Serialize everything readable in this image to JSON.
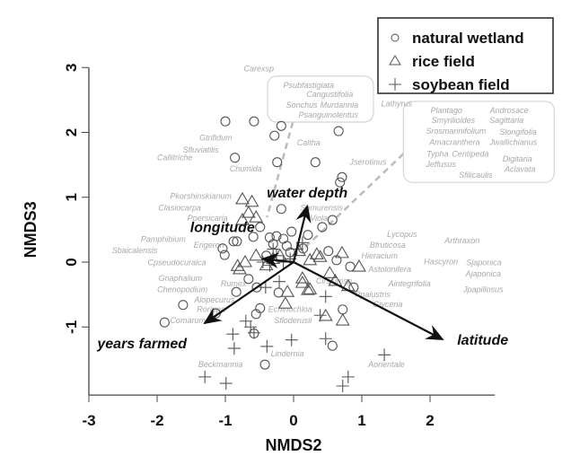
{
  "chart_data": {
    "type": "scatter",
    "xlabel": "NMDS2",
    "ylabel": "NMDS3",
    "xlim": [
      -3,
      2.95
    ],
    "ylim": [
      -2.05,
      3
    ],
    "xticks": [
      "-3",
      "-2",
      "-1",
      "0",
      "1",
      "2"
    ],
    "yticks": [
      "-1",
      "0",
      "1",
      "2",
      "3"
    ],
    "grid": false,
    "legend_placement": "top-right",
    "series": [
      {
        "name": "natural wetland",
        "marker": "circle",
        "points": [
          [
            -1.0,
            2.17
          ],
          [
            -0.58,
            2.17
          ],
          [
            -0.18,
            2.1
          ],
          [
            -0.28,
            1.95
          ],
          [
            0.66,
            2.02
          ],
          [
            -0.86,
            1.61
          ],
          [
            -0.24,
            1.54
          ],
          [
            0.32,
            1.54
          ],
          [
            0.71,
            1.31
          ],
          [
            0.68,
            1.23
          ],
          [
            -0.18,
            0.82
          ],
          [
            0.57,
            0.65
          ],
          [
            0.42,
            0.54
          ],
          [
            -0.49,
            0.54
          ],
          [
            -0.88,
            0.32
          ],
          [
            -0.83,
            0.32
          ],
          [
            -1.04,
            0.21
          ],
          [
            -1.01,
            0.11
          ],
          [
            -0.59,
            0.39
          ],
          [
            -0.03,
            0.47
          ],
          [
            0.14,
            0.21
          ],
          [
            0.21,
            0.42
          ],
          [
            0.51,
            0.17
          ],
          [
            0.63,
            0.03
          ],
          [
            0.83,
            -0.07
          ],
          [
            -0.66,
            -0.26
          ],
          [
            -0.84,
            -0.46
          ],
          [
            -1.62,
            -0.66
          ],
          [
            -1.89,
            -0.93
          ],
          [
            -1.14,
            -0.79
          ],
          [
            -0.55,
            -0.8
          ],
          [
            -0.49,
            -0.71
          ],
          [
            -0.54,
            -0.39
          ],
          [
            -0.22,
            -0.47
          ],
          [
            0.72,
            -0.73
          ],
          [
            0.88,
            -0.39
          ],
          [
            0.57,
            -1.29
          ],
          [
            -0.42,
            -1.58
          ],
          [
            -0.58,
            -1.1
          ],
          [
            -0.35,
            0.38
          ],
          [
            -0.25,
            0.4
          ],
          [
            -0.15,
            0.36
          ],
          [
            -0.3,
            0.28
          ],
          [
            -0.1,
            0.25
          ],
          [
            -0.05,
            0.15
          ],
          [
            -0.4,
            0.1
          ]
        ]
      },
      {
        "name": "rice field",
        "marker": "triangle",
        "points": [
          [
            -0.75,
            0.97
          ],
          [
            -0.61,
            0.93
          ],
          [
            -0.66,
            0.76
          ],
          [
            -0.55,
            0.69
          ],
          [
            -0.75,
            0.65
          ],
          [
            -0.82,
            -0.06
          ],
          [
            -0.71,
            0.0
          ],
          [
            -0.79,
            -0.11
          ],
          [
            0.13,
            -0.25
          ],
          [
            0.24,
            0.03
          ],
          [
            0.21,
            -0.43
          ],
          [
            -0.09,
            -0.46
          ],
          [
            -0.12,
            -0.64
          ],
          [
            0.39,
            0.08
          ],
          [
            0.71,
            0.14
          ],
          [
            0.96,
            -0.07
          ],
          [
            0.53,
            -0.17
          ],
          [
            0.61,
            -0.29
          ],
          [
            0.08,
            0.17
          ],
          [
            0.34,
            0.12
          ],
          [
            0.8,
            -0.37
          ],
          [
            0.24,
            -0.42
          ],
          [
            0.72,
            -0.9
          ],
          [
            0.47,
            -0.83
          ],
          [
            0.13,
            -0.32
          ],
          [
            -0.3,
            0.05
          ],
          [
            -0.2,
            0.1
          ],
          [
            -0.4,
            -0.05
          ],
          [
            -0.55,
            0.1
          ]
        ]
      },
      {
        "name": "soybean field",
        "marker": "cross",
        "points": [
          [
            -0.7,
            -0.91
          ],
          [
            -0.63,
            -1.0
          ],
          [
            -0.89,
            -1.11
          ],
          [
            -0.87,
            -1.33
          ],
          [
            -0.39,
            -1.3
          ],
          [
            -0.03,
            -1.2
          ],
          [
            0.47,
            -1.18
          ],
          [
            0.39,
            -0.82
          ],
          [
            1.33,
            -1.43
          ],
          [
            0.8,
            -1.77
          ],
          [
            0.72,
            -1.91
          ],
          [
            -1.3,
            -1.77
          ],
          [
            -0.99,
            -1.87
          ],
          [
            -0.58,
            -1.09
          ],
          [
            0.47,
            -0.53
          ],
          [
            -0.41,
            -0.39
          ],
          [
            -0.21,
            -0.3
          ],
          [
            0.13,
            0.3
          ],
          [
            -0.25,
            0.1
          ],
          [
            -0.15,
            0.0
          ],
          [
            -0.35,
            -0.05
          ],
          [
            -0.05,
            0.05
          ],
          [
            -0.3,
            0.2
          ],
          [
            0.05,
            0.2
          ],
          [
            -0.45,
            0.0
          ]
        ]
      }
    ],
    "env_vectors": [
      {
        "label": "water depth",
        "tip": [
          0.2,
          0.86
        ]
      },
      {
        "label": "longitude",
        "tip": [
          -0.45,
          0.05
        ]
      },
      {
        "label": "years farmed",
        "tip": [
          -1.3,
          -0.94
        ]
      },
      {
        "label": "latitude",
        "tip": [
          2.18,
          -1.19
        ]
      }
    ],
    "species_labels": [
      {
        "t": "Carexsp",
        "x": -0.51,
        "y": 2.98
      },
      {
        "t": "Lathyrus",
        "x": 1.51,
        "y": 2.44
      },
      {
        "t": "Gtrifidum",
        "x": -1.14,
        "y": 1.92
      },
      {
        "t": "Sfluviatilis",
        "x": -1.36,
        "y": 1.73
      },
      {
        "t": "Callitriche",
        "x": -1.74,
        "y": 1.61
      },
      {
        "t": "Chumida",
        "x": -0.7,
        "y": 1.44
      },
      {
        "t": "Caltha",
        "x": 0.22,
        "y": 1.84
      },
      {
        "t": "Jserotinus",
        "x": 1.09,
        "y": 1.54
      },
      {
        "t": "Pkorshinskianum",
        "x": -1.36,
        "y": 1.02
      },
      {
        "t": "Clasiocarpa",
        "x": -1.67,
        "y": 0.84
      },
      {
        "t": "Ppersicaria",
        "x": -1.26,
        "y": 0.68
      },
      {
        "t": "Samurensis",
        "x": 0.41,
        "y": 0.84
      },
      {
        "t": "Viola",
        "x": 0.37,
        "y": 0.68
      },
      {
        "t": "Pamphibium",
        "x": -1.91,
        "y": 0.35
      },
      {
        "t": "Erigeron",
        "x": -1.24,
        "y": 0.26
      },
      {
        "t": "Sbaicalensis",
        "x": -2.33,
        "y": 0.18
      },
      {
        "t": "Cpseudocuraica",
        "x": -1.71,
        "y": -0.01
      },
      {
        "t": "Gnaphalium",
        "x": -1.66,
        "y": -0.25
      },
      {
        "t": "Chenopodium",
        "x": -1.63,
        "y": -0.42
      },
      {
        "t": "Rumex",
        "x": -0.88,
        "y": -0.33
      },
      {
        "t": "Alopecurus",
        "x": -1.16,
        "y": -0.58
      },
      {
        "t": "Rorippa",
        "x": -1.21,
        "y": -0.73
      },
      {
        "t": "Comarum",
        "x": -1.55,
        "y": -0.9
      },
      {
        "t": "Echinochloa",
        "x": -0.05,
        "y": -0.73
      },
      {
        "t": "Sfloderusii",
        "x": -0.01,
        "y": -0.9
      },
      {
        "t": "Lindernia",
        "x": -0.09,
        "y": -1.41
      },
      {
        "t": "Beckmannia",
        "x": -1.07,
        "y": -1.58
      },
      {
        "t": "Aorientale",
        "x": 1.36,
        "y": -1.58
      },
      {
        "t": "Lycopus",
        "x": 1.59,
        "y": 0.43
      },
      {
        "t": "Arthraxon",
        "x": 2.47,
        "y": 0.33
      },
      {
        "t": "Bfruticosa",
        "x": 1.38,
        "y": 0.26
      },
      {
        "t": "Hieracium",
        "x": 1.26,
        "y": 0.1
      },
      {
        "t": "Hascyron",
        "x": 2.16,
        "y": 0.01
      },
      {
        "t": "Sjaponica",
        "x": 2.79,
        "y": -0.01
      },
      {
        "t": "Astolonifera",
        "x": 1.41,
        "y": -0.11
      },
      {
        "t": "Ajaponica",
        "x": 2.78,
        "y": -0.18
      },
      {
        "t": "Cirsiumsp",
        "x": 0.59,
        "y": -0.29
      },
      {
        "t": "Aintegrifolia",
        "x": 1.7,
        "y": -0.33
      },
      {
        "t": "Jpapillosus",
        "x": 2.78,
        "y": -0.42
      },
      {
        "t": "Ppalustris",
        "x": 1.16,
        "y": -0.5
      },
      {
        "t": "Glyceria",
        "x": 1.38,
        "y": -0.65
      }
    ],
    "species_groups": [
      {
        "points_to": [
          -0.39,
          0.69
        ],
        "items": [
          {
            "t": "Psubfastigiata",
            "x": 0.22,
            "y": 2.73
          },
          {
            "t": "Cangustifolia",
            "x": 0.53,
            "y": 2.59
          },
          {
            "t": "Sonchus",
            "x": 0.12,
            "y": 2.42
          },
          {
            "t": "Murdannia",
            "x": 0.67,
            "y": 2.42
          },
          {
            "t": "Psanguinolentus",
            "x": 0.51,
            "y": 2.27
          }
        ]
      },
      {
        "points_to": [
          0.11,
          0.17
        ],
        "items": [
          {
            "t": "Plantago",
            "x": 2.24,
            "y": 2.34
          },
          {
            "t": "Androsace",
            "x": 3.16,
            "y": 2.34
          },
          {
            "t": "Smyrilioides",
            "x": 2.34,
            "y": 2.19
          },
          {
            "t": "Sagittaria",
            "x": 3.12,
            "y": 2.19
          },
          {
            "t": "Srosmarinifolium",
            "x": 2.38,
            "y": 2.02
          },
          {
            "t": "Slongifolia",
            "x": 3.29,
            "y": 2.01
          },
          {
            "t": "Amacranthera",
            "x": 2.36,
            "y": 1.85
          },
          {
            "t": "Jwallichianus",
            "x": 3.22,
            "y": 1.85
          },
          {
            "t": "Typha",
            "x": 2.11,
            "y": 1.67
          },
          {
            "t": "Centipeda",
            "x": 2.59,
            "y": 1.67
          },
          {
            "t": "Digitaria",
            "x": 3.28,
            "y": 1.59
          },
          {
            "t": "Jeffusus",
            "x": 2.16,
            "y": 1.51
          },
          {
            "t": "Aclavata",
            "x": 3.32,
            "y": 1.43
          },
          {
            "t": "Sfilicaulis",
            "x": 2.67,
            "y": 1.34
          }
        ]
      }
    ],
    "colors": {
      "marker": "#555555",
      "species_text": "#a8a8a8",
      "vector": "#111111",
      "dashed": "#bbbbbb"
    }
  }
}
